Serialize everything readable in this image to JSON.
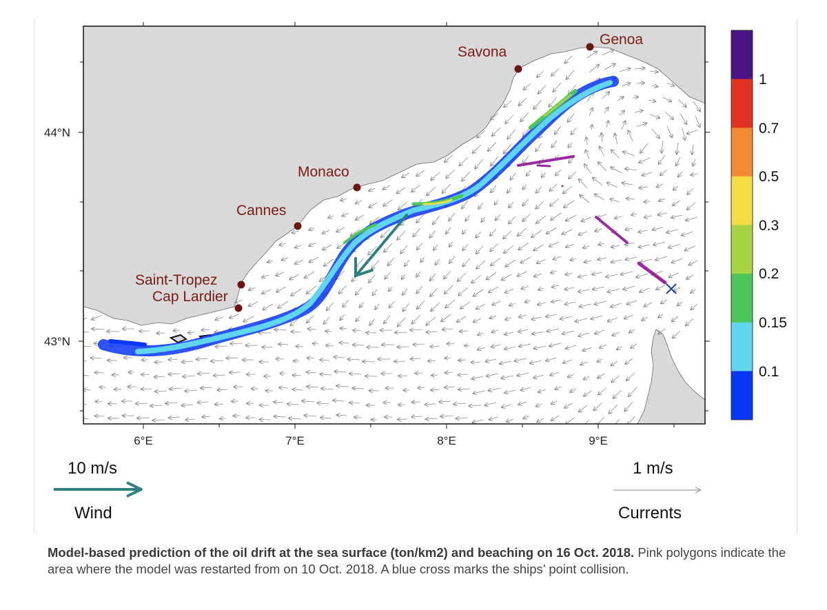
{
  "map": {
    "lat_ticks": [
      "44°N",
      "43°N"
    ],
    "lon_ticks": [
      "6°E",
      "7°E",
      "8°E",
      "9°E"
    ],
    "places": [
      {
        "name": "Genoa",
        "lon": 8.95,
        "lat": 44.41
      },
      {
        "name": "Savona",
        "lon": 8.48,
        "lat": 44.31
      },
      {
        "name": "Monaco",
        "lon": 7.41,
        "lat": 43.73
      },
      {
        "name": "Cannes",
        "lon": 7.01,
        "lat": 43.55
      },
      {
        "name": "Saint-Tropez",
        "lon": 6.64,
        "lat": 43.27
      },
      {
        "name": "Cap Lardier",
        "lon": 6.62,
        "lat": 43.16
      }
    ],
    "collision_marker": "blue-cross",
    "colors": {
      "land": "#d9d9d9",
      "sea": "#ffffff",
      "place_dot": "#6b1510",
      "wind_arrow": "#2e8080",
      "current_arrow": "#8a8a8a",
      "restart_polygon": "#9a2aa0",
      "collision_cross": "#1f3fbf"
    }
  },
  "colorbar": {
    "labels": [
      "1",
      "0.7",
      "0.5",
      "0.3",
      "0.2",
      "0.15",
      "0.1"
    ],
    "colors": [
      "#4a1485",
      "#e23223",
      "#f08a34",
      "#f5dc45",
      "#a7d443",
      "#4cc65a",
      "#5fd6ee",
      "#0a36f5"
    ]
  },
  "legend": {
    "wind_speed": "10 m/s",
    "wind_label": "Wind",
    "current_speed": "1 m/s",
    "current_label": "Currents"
  },
  "caption": {
    "bold": "Model-based prediction of the oil drift at the sea surface (ton/km2) and beaching on 16 Oct. 2018.",
    "text": "Pink polygons indicate the area where the model was restarted from on 10 Oct. 2018. A blue cross marks the ships’ point collision."
  }
}
